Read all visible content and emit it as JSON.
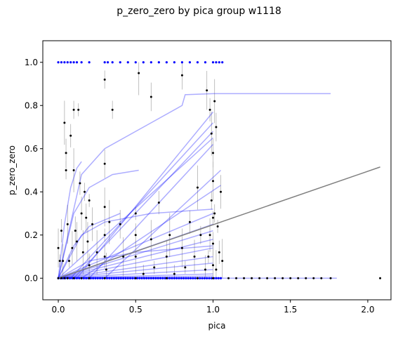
{
  "chart_data": {
    "type": "scatter",
    "title": "p_zero_zero by pica group w1118",
    "xlabel": "pica",
    "ylabel": "p_zero_zero",
    "xlim": [
      -0.1,
      2.15
    ],
    "ylim": [
      -0.1,
      1.1
    ],
    "xticks": [
      0.0,
      0.5,
      1.0,
      1.5,
      2.0
    ],
    "xtick_labels": [
      "0.0",
      "0.5",
      "1.0",
      "1.5",
      "2.0"
    ],
    "yticks": [
      0.0,
      0.2,
      0.4,
      0.6,
      0.8,
      1.0
    ],
    "ytick_labels": [
      "0.0",
      "0.2",
      "0.4",
      "0.6",
      "0.8",
      "1.0"
    ],
    "grid": false,
    "colors": {
      "points": "#000000",
      "error_bars": "#b0b0b0",
      "group_fits": "#0000ff",
      "overall_fit": "#808080",
      "blue_points": "#0000ff"
    },
    "series": [
      {
        "role": "overall-fit",
        "x": [
          0.0,
          2.08
        ],
        "y": [
          0.0,
          0.515
        ]
      }
    ],
    "group_fits": [
      {
        "x": [
          0.0,
          0.04,
          0.08,
          0.12,
          0.15
        ],
        "y": [
          0.0,
          0.25,
          0.42,
          0.51,
          0.54
        ]
      },
      {
        "x": [
          0.0,
          0.1,
          0.2,
          0.35,
          0.52
        ],
        "y": [
          0.0,
          0.3,
          0.42,
          0.48,
          0.5
        ]
      },
      {
        "x": [
          0.0,
          0.15,
          0.3,
          0.6,
          0.8,
          0.82,
          1.0,
          1.5,
          1.76
        ],
        "y": [
          0.0,
          0.48,
          0.6,
          0.72,
          0.8,
          0.85,
          0.855,
          0.855,
          0.855
        ]
      },
      {
        "x": [
          0.12,
          1.0
        ],
        "y": [
          0.0,
          0.77
        ]
      },
      {
        "x": [
          0.08,
          1.0
        ],
        "y": [
          0.0,
          0.72
        ]
      },
      {
        "x": [
          0.1,
          1.0
        ],
        "y": [
          0.0,
          0.68
        ]
      },
      {
        "x": [
          0.0,
          1.0
        ],
        "y": [
          0.0,
          0.65
        ]
      },
      {
        "x": [
          0.2,
          1.0
        ],
        "y": [
          0.0,
          0.62
        ]
      },
      {
        "x": [
          0.3,
          1.05
        ],
        "y": [
          0.0,
          0.5
        ]
      },
      {
        "x": [
          0.15,
          1.05
        ],
        "y": [
          0.0,
          0.43
        ]
      },
      {
        "x": [
          0.0,
          1.0
        ],
        "y": [
          0.0,
          0.3
        ]
      },
      {
        "x": [
          0.0,
          1.0
        ],
        "y": [
          0.0,
          0.25
        ]
      },
      {
        "x": [
          0.0,
          1.0
        ],
        "y": [
          0.0,
          0.22
        ]
      },
      {
        "x": [
          0.0,
          1.0
        ],
        "y": [
          0.0,
          0.18
        ]
      },
      {
        "x": [
          0.0,
          1.0
        ],
        "y": [
          0.0,
          0.14
        ]
      },
      {
        "x": [
          0.0,
          1.0
        ],
        "y": [
          0.0,
          0.1
        ]
      },
      {
        "x": [
          0.0,
          1.0
        ],
        "y": [
          0.0,
          0.07
        ]
      },
      {
        "x": [
          0.0,
          1.0
        ],
        "y": [
          0.0,
          0.04
        ]
      },
      {
        "x": [
          0.0,
          1.0
        ],
        "y": [
          0.0,
          0.02
        ]
      },
      {
        "x": [
          0.0,
          1.0
        ],
        "y": [
          0.0,
          0.01
        ]
      },
      {
        "x": [
          0.0,
          0.15,
          0.3,
          0.6,
          1.0
        ],
        "y": [
          0.0,
          0.2,
          0.26,
          0.3,
          0.32
        ]
      },
      {
        "x": [
          0.0,
          0.1,
          0.2,
          0.4
        ],
        "y": [
          0.0,
          0.15,
          0.24,
          0.3
        ]
      },
      {
        "x": [
          0.0,
          0.2,
          0.5,
          1.0
        ],
        "y": [
          0.0,
          0.08,
          0.12,
          0.15
        ]
      },
      {
        "x": [
          0.0,
          1.8
        ],
        "y": [
          0.0,
          0.0
        ]
      }
    ],
    "points": [
      [
        0.0,
        0.0
      ],
      [
        0.02,
        0.0
      ],
      [
        0.04,
        0.0
      ],
      [
        0.06,
        0.0
      ],
      [
        0.1,
        0.0
      ],
      [
        0.15,
        0.0
      ],
      [
        0.2,
        0.0
      ],
      [
        0.3,
        0.0
      ],
      [
        0.5,
        0.0
      ],
      [
        0.7,
        0.0
      ],
      [
        0.9,
        0.0
      ],
      [
        1.0,
        0.0
      ],
      [
        1.1,
        0.0
      ],
      [
        1.15,
        0.0
      ],
      [
        1.2,
        0.0
      ],
      [
        1.25,
        0.0
      ],
      [
        1.3,
        0.0
      ],
      [
        1.35,
        0.0
      ],
      [
        1.4,
        0.0
      ],
      [
        1.45,
        0.0
      ],
      [
        1.5,
        0.0
      ],
      [
        1.55,
        0.0
      ],
      [
        1.6,
        0.0
      ],
      [
        1.65,
        0.0
      ],
      [
        1.7,
        0.0
      ],
      [
        1.76,
        0.0
      ],
      [
        2.08,
        0.0
      ],
      [
        0.0,
        0.14
      ],
      [
        0.01,
        0.08
      ],
      [
        0.02,
        0.22
      ],
      [
        0.03,
        0.08
      ],
      [
        0.04,
        0.72
      ],
      [
        0.05,
        0.5
      ],
      [
        0.05,
        0.58
      ],
      [
        0.06,
        0.25
      ],
      [
        0.07,
        0.08
      ],
      [
        0.08,
        0.66
      ],
      [
        0.09,
        0.14
      ],
      [
        0.1,
        0.5
      ],
      [
        0.1,
        0.78
      ],
      [
        0.11,
        0.22
      ],
      [
        0.12,
        0.17
      ],
      [
        0.13,
        0.78
      ],
      [
        0.14,
        0.44
      ],
      [
        0.15,
        0.3
      ],
      [
        0.16,
        0.12
      ],
      [
        0.17,
        0.4
      ],
      [
        0.18,
        0.28
      ],
      [
        0.19,
        0.17
      ],
      [
        0.2,
        0.36
      ],
      [
        0.2,
        0.06
      ],
      [
        0.22,
        0.25
      ],
      [
        0.25,
        0.12
      ],
      [
        0.3,
        0.92
      ],
      [
        0.3,
        0.53
      ],
      [
        0.3,
        0.33
      ],
      [
        0.3,
        0.2
      ],
      [
        0.3,
        0.1
      ],
      [
        0.31,
        0.04
      ],
      [
        0.33,
        0.26
      ],
      [
        0.35,
        0.78
      ],
      [
        0.4,
        0.25
      ],
      [
        0.42,
        0.1
      ],
      [
        0.5,
        0.3
      ],
      [
        0.5,
        0.2
      ],
      [
        0.5,
        0.1
      ],
      [
        0.52,
        0.95
      ],
      [
        0.55,
        0.02
      ],
      [
        0.6,
        0.84
      ],
      [
        0.6,
        0.18
      ],
      [
        0.62,
        0.05
      ],
      [
        0.65,
        0.35
      ],
      [
        0.7,
        0.1
      ],
      [
        0.72,
        0.2
      ],
      [
        0.75,
        0.02
      ],
      [
        0.8,
        0.94
      ],
      [
        0.8,
        0.14
      ],
      [
        0.82,
        0.05
      ],
      [
        0.85,
        0.26
      ],
      [
        0.88,
        0.1
      ],
      [
        0.9,
        0.42
      ],
      [
        0.92,
        0.2
      ],
      [
        0.95,
        0.04
      ],
      [
        0.96,
        0.87
      ],
      [
        0.97,
        0.1
      ],
      [
        0.98,
        0.78
      ],
      [
        0.98,
        0.2
      ],
      [
        0.99,
        0.67
      ],
      [
        0.99,
        0.36
      ],
      [
        1.0,
        0.58
      ],
      [
        1.0,
        0.45
      ],
      [
        1.0,
        0.28
      ],
      [
        1.0,
        0.16
      ],
      [
        1.0,
        0.06
      ],
      [
        1.01,
        0.82
      ],
      [
        1.01,
        0.3
      ],
      [
        1.02,
        0.7
      ],
      [
        1.02,
        0.04
      ],
      [
        1.03,
        0.24
      ],
      [
        1.04,
        0.12
      ],
      [
        1.05,
        0.4
      ],
      [
        1.06,
        0.08
      ]
    ],
    "points_top": [
      0.0,
      0.02,
      0.04,
      0.06,
      0.08,
      0.1,
      0.12,
      0.15,
      0.2,
      0.3,
      0.32,
      0.35,
      0.4,
      0.45,
      0.5,
      0.55,
      0.6,
      0.65,
      0.7,
      0.75,
      0.8,
      0.85,
      0.9,
      0.95,
      1.0,
      1.02,
      1.04,
      1.06
    ]
  }
}
